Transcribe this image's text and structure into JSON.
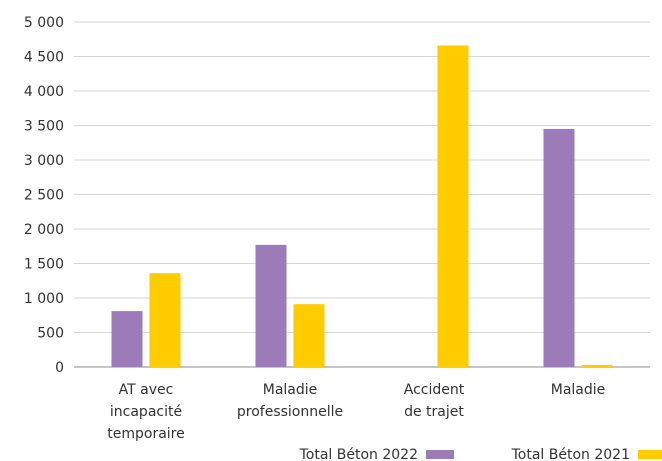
{
  "chart_data": {
    "type": "bar",
    "categories": [
      [
        "AT avec",
        "incapacité",
        "temporaire"
      ],
      [
        "Maladie",
        "professionnelle"
      ],
      [
        "Accident",
        "de trajet"
      ],
      [
        "Maladie"
      ]
    ],
    "series": [
      {
        "name": "Total Béton 2022",
        "color": "#9b7bb8",
        "values": [
          810,
          1770,
          0,
          3450
        ]
      },
      {
        "name": "Total Béton 2021",
        "color": "#ffcc00",
        "values": [
          1360,
          910,
          4660,
          30
        ]
      }
    ],
    "ylim": [
      0,
      5000
    ],
    "yticks": [
      0,
      500,
      1000,
      1500,
      2000,
      2500,
      3000,
      3500,
      4000,
      4500,
      5000
    ],
    "ytick_labels": [
      "0",
      "500",
      "1 000",
      "1 500",
      "2 000",
      "2 500",
      "3 000",
      "3 500",
      "4 000",
      "4 500",
      "5 000"
    ],
    "grid": true,
    "legend_position": "bottom-right",
    "title": "",
    "xlabel": "",
    "ylabel": ""
  }
}
